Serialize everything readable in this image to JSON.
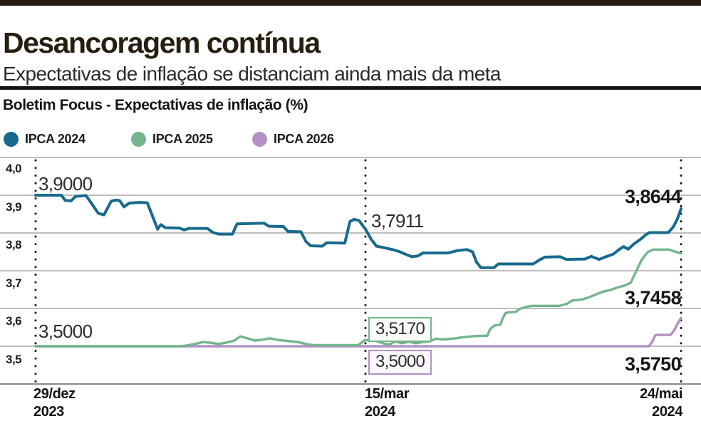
{
  "header": {
    "title": "Desancoragem contínua",
    "subtitle": "Expectativas de inflação se distanciam ainda mais da meta"
  },
  "chart": {
    "title": "Boletim Focus - Expectativas de inflação (%)",
    "y_ticks": [
      "4,0",
      "3,9",
      "3,8",
      "3,7",
      "3,6",
      "3,5"
    ],
    "x_ticks": [
      {
        "date": "29/dez",
        "year": "2023"
      },
      {
        "date": "15/mar",
        "year": "2024"
      },
      {
        "date": "24/mai",
        "year": "2024"
      }
    ]
  },
  "annotations": {
    "ipca2024_start": "3,9000",
    "ipca2024_mid": "3,7911",
    "ipca2024_end": "3,8644",
    "ipca2025_start": "3,5000",
    "ipca2025_mid": "3,5170",
    "ipca2026_mid": "3,5000",
    "ipca2025_end": "3,7458",
    "ipca2026_end": "3,5750"
  },
  "colors": {
    "top_bar": "#261c11",
    "divider": "#191310",
    "gridline": "#989898",
    "axis_line": "#8a8a8a",
    "dotted_marker": "#1b1b1b"
  },
  "chart_data": {
    "type": "line",
    "title": "Boletim Focus - Expectativas de inflação (%)",
    "x_axis": {
      "type": "time",
      "ticks": [
        "29/dez 2023",
        "15/mar 2024",
        "24/mai 2024"
      ],
      "tick_positions": [
        0,
        0.511,
        1
      ]
    },
    "y_axis": {
      "min": 3.4,
      "max": 4.0,
      "gridline_step": 0.1,
      "labeled_ticks": [
        4.0,
        3.9,
        3.8,
        3.7,
        3.6,
        3.5
      ]
    },
    "grid": true,
    "legend_position": "top",
    "series": [
      {
        "name": "IPCA 2024",
        "color": "#176a8e",
        "width": 4,
        "start_value": 3.9,
        "mid_value": 3.7911,
        "end_value": 3.8644,
        "points": [
          [
            0,
            3.9
          ],
          [
            0.04,
            3.9
          ],
          [
            0.046,
            3.886
          ],
          [
            0.055,
            3.885
          ],
          [
            0.062,
            3.897
          ],
          [
            0.078,
            3.899
          ],
          [
            0.086,
            3.88
          ],
          [
            0.097,
            3.852
          ],
          [
            0.106,
            3.848
          ],
          [
            0.117,
            3.884
          ],
          [
            0.124,
            3.887
          ],
          [
            0.13,
            3.886
          ],
          [
            0.137,
            3.869
          ],
          [
            0.145,
            3.879
          ],
          [
            0.161,
            3.881
          ],
          [
            0.173,
            3.88
          ],
          [
            0.181,
            3.845
          ],
          [
            0.189,
            3.81
          ],
          [
            0.194,
            3.822
          ],
          [
            0.201,
            3.814
          ],
          [
            0.223,
            3.813
          ],
          [
            0.23,
            3.808
          ],
          [
            0.238,
            3.812
          ],
          [
            0.266,
            3.812
          ],
          [
            0.275,
            3.801
          ],
          [
            0.284,
            3.797
          ],
          [
            0.305,
            3.797
          ],
          [
            0.312,
            3.824
          ],
          [
            0.354,
            3.826
          ],
          [
            0.361,
            3.818
          ],
          [
            0.384,
            3.817
          ],
          [
            0.391,
            3.804
          ],
          [
            0.411,
            3.803
          ],
          [
            0.419,
            3.777
          ],
          [
            0.426,
            3.766
          ],
          [
            0.444,
            3.765
          ],
          [
            0.451,
            3.774
          ],
          [
            0.479,
            3.773
          ],
          [
            0.487,
            3.83
          ],
          [
            0.493,
            3.836
          ],
          [
            0.501,
            3.833
          ],
          [
            0.511,
            3.81
          ],
          [
            0.52,
            3.783
          ],
          [
            0.528,
            3.765
          ],
          [
            0.54,
            3.761
          ],
          [
            0.553,
            3.756
          ],
          [
            0.563,
            3.751
          ],
          [
            0.574,
            3.743
          ],
          [
            0.583,
            3.737
          ],
          [
            0.592,
            3.739
          ],
          [
            0.6,
            3.747
          ],
          [
            0.639,
            3.747
          ],
          [
            0.653,
            3.753
          ],
          [
            0.668,
            3.756
          ],
          [
            0.677,
            3.75
          ],
          [
            0.683,
            3.723
          ],
          [
            0.69,
            3.708
          ],
          [
            0.71,
            3.708
          ],
          [
            0.717,
            3.718
          ],
          [
            0.771,
            3.718
          ],
          [
            0.78,
            3.728
          ],
          [
            0.789,
            3.736
          ],
          [
            0.813,
            3.737
          ],
          [
            0.822,
            3.73
          ],
          [
            0.851,
            3.731
          ],
          [
            0.861,
            3.738
          ],
          [
            0.873,
            3.73
          ],
          [
            0.885,
            3.738
          ],
          [
            0.895,
            3.744
          ],
          [
            0.904,
            3.756
          ],
          [
            0.911,
            3.764
          ],
          [
            0.918,
            3.757
          ],
          [
            0.927,
            3.771
          ],
          [
            0.937,
            3.783
          ],
          [
            0.946,
            3.796
          ],
          [
            0.951,
            3.801
          ],
          [
            0.98,
            3.801
          ],
          [
            0.988,
            3.816
          ],
          [
            0.994,
            3.836
          ],
          [
            1,
            3.8644
          ]
        ]
      },
      {
        "name": "IPCA 2025",
        "color": "#74b58d",
        "width": 3.4,
        "start_value": 3.5,
        "mid_value": 3.517,
        "end_value": 3.7458,
        "points": [
          [
            0,
            3.5
          ],
          [
            0.224,
            3.5
          ],
          [
            0.234,
            3.502
          ],
          [
            0.247,
            3.506
          ],
          [
            0.259,
            3.511
          ],
          [
            0.272,
            3.509
          ],
          [
            0.283,
            3.506
          ],
          [
            0.294,
            3.509
          ],
          [
            0.308,
            3.515
          ],
          [
            0.317,
            3.526
          ],
          [
            0.328,
            3.521
          ],
          [
            0.339,
            3.515
          ],
          [
            0.35,
            3.517
          ],
          [
            0.363,
            3.521
          ],
          [
            0.374,
            3.517
          ],
          [
            0.39,
            3.514
          ],
          [
            0.407,
            3.511
          ],
          [
            0.421,
            3.505
          ],
          [
            0.432,
            3.503
          ],
          [
            0.5,
            3.503
          ],
          [
            0.509,
            3.515
          ],
          [
            0.518,
            3.517
          ],
          [
            0.529,
            3.513
          ],
          [
            0.54,
            3.507
          ],
          [
            0.549,
            3.505
          ],
          [
            0.557,
            3.513
          ],
          [
            0.568,
            3.508
          ],
          [
            0.578,
            3.512
          ],
          [
            0.589,
            3.508
          ],
          [
            0.6,
            3.511
          ],
          [
            0.611,
            3.513
          ],
          [
            0.62,
            3.52
          ],
          [
            0.631,
            3.518
          ],
          [
            0.651,
            3.521
          ],
          [
            0.662,
            3.524
          ],
          [
            0.682,
            3.527
          ],
          [
            0.7,
            3.528
          ],
          [
            0.704,
            3.545
          ],
          [
            0.711,
            3.555
          ],
          [
            0.72,
            3.557
          ],
          [
            0.724,
            3.575
          ],
          [
            0.728,
            3.588
          ],
          [
            0.734,
            3.59
          ],
          [
            0.744,
            3.591
          ],
          [
            0.749,
            3.598
          ],
          [
            0.759,
            3.604
          ],
          [
            0.769,
            3.607
          ],
          [
            0.812,
            3.607
          ],
          [
            0.824,
            3.613
          ],
          [
            0.831,
            3.621
          ],
          [
            0.847,
            3.624
          ],
          [
            0.858,
            3.63
          ],
          [
            0.869,
            3.638
          ],
          [
            0.88,
            3.645
          ],
          [
            0.891,
            3.649
          ],
          [
            0.902,
            3.656
          ],
          [
            0.913,
            3.661
          ],
          [
            0.922,
            3.668
          ],
          [
            0.93,
            3.697
          ],
          [
            0.939,
            3.729
          ],
          [
            0.948,
            3.749
          ],
          [
            0.957,
            3.756
          ],
          [
            0.981,
            3.756
          ],
          [
            0.99,
            3.751
          ],
          [
            1,
            3.7458
          ]
        ]
      },
      {
        "name": "IPCA 2026",
        "color": "#b292c3",
        "width": 3.4,
        "start_value": 3.5,
        "mid_value": 3.5,
        "end_value": 3.575,
        "points": [
          [
            0,
            3.5
          ],
          [
            0.95,
            3.5
          ],
          [
            0.956,
            3.513
          ],
          [
            0.96,
            3.529
          ],
          [
            0.965,
            3.53
          ],
          [
            0.984,
            3.53
          ],
          [
            0.99,
            3.544
          ],
          [
            0.994,
            3.558
          ],
          [
            1,
            3.575
          ]
        ]
      }
    ]
  }
}
